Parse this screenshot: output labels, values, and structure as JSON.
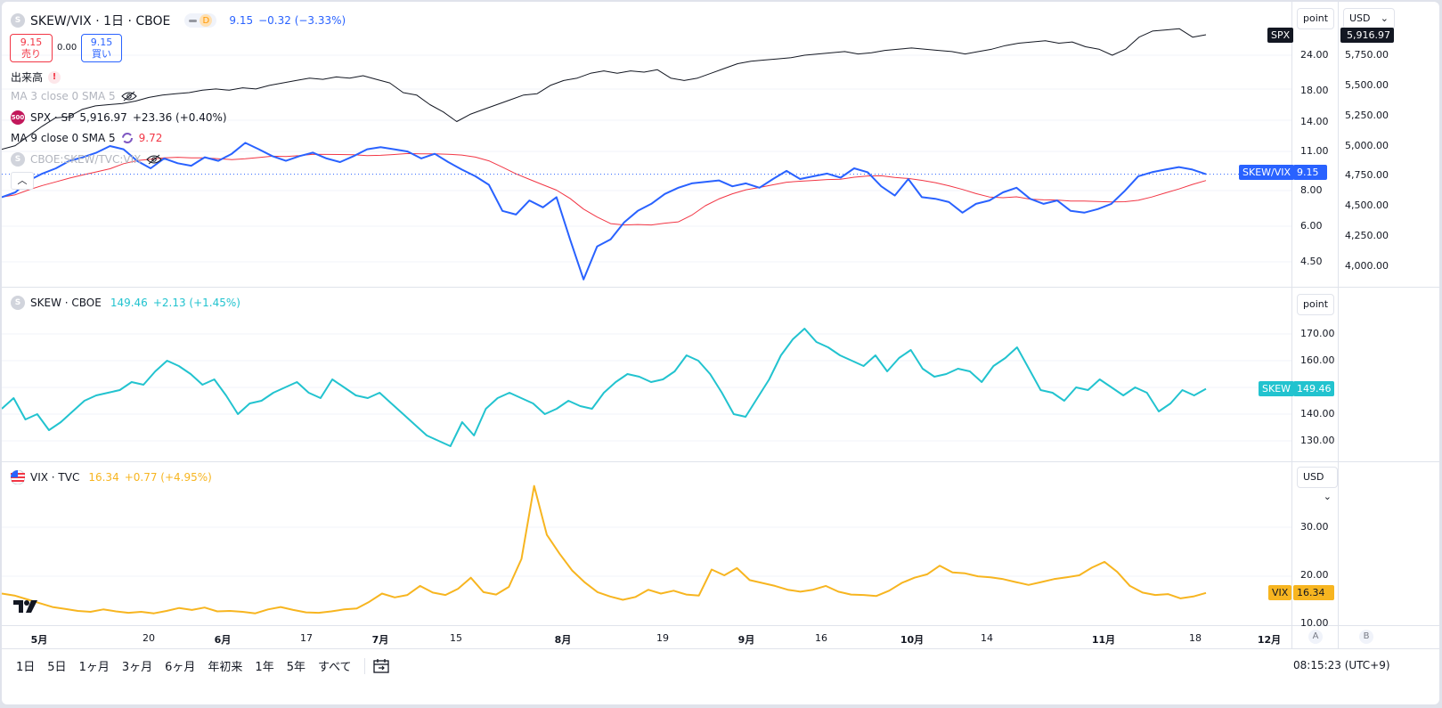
{
  "header": {
    "symbol_title": "SKEW/VIX · 1日 · CBOE",
    "interval_badge": "D",
    "price": "9.15",
    "change": "−0.32 (−3.33%)",
    "sell_price": "9.15",
    "sell_label": "売り",
    "spread": "0.00",
    "buy_price": "9.15",
    "buy_label": "買い"
  },
  "indicators": {
    "volume": "出来高",
    "ma3": "MA 3 close 0 SMA 5",
    "spx_line": "SPX · SP",
    "spx_price": "5,916.97",
    "spx_change": "+23.36 (+0.40%)",
    "ma9": "MA 9 close 0 SMA 5",
    "ma9_value": "9.72",
    "cboe_ratio": "CBOE:SKEW/TVC:VIX"
  },
  "pane2": {
    "title": "SKEW · CBOE",
    "price": "149.46",
    "change": "+2.13 (+1.45%)"
  },
  "pane3": {
    "title": "VIX · TVC",
    "price": "16.34",
    "change": "+0.77 (+4.95%)"
  },
  "scale_buttons": {
    "p1_mode": "point",
    "p1_currency": "USD",
    "p2_mode": "point",
    "p3_currency": "USD"
  },
  "price_tags": {
    "spx_label": "SPX",
    "spx_value": "5,916.97",
    "ratio_label": "SKEW/VIX",
    "ratio_value": "9.15",
    "skew_label": "SKEW",
    "skew_value": "149.46",
    "vix_label": "VIX",
    "vix_value": "16.34"
  },
  "axis_p1_left": [
    "24.00",
    "18.00",
    "14.00",
    "11.00",
    "8.00",
    "6.00",
    "4.50"
  ],
  "axis_p1_right": [
    "5,750.00",
    "5,500.00",
    "5,250.00",
    "5,000.00",
    "4,750.00",
    "4,500.00",
    "4,250.00",
    "4,000.00"
  ],
  "axis_p2": [
    "170.00",
    "160.00",
    "150.00",
    "140.00",
    "130.00"
  ],
  "axis_p3": [
    "30.00",
    "20.00",
    "10.00"
  ],
  "x_axis": [
    "5月",
    "20",
    "6月",
    "17",
    "7月",
    "15",
    "8月",
    "19",
    "9月",
    "16",
    "10月",
    "14",
    "11月",
    "18",
    "12月"
  ],
  "axis_buttons": [
    "A",
    "B"
  ],
  "bottom": {
    "ranges": [
      "1日",
      "5日",
      "1ヶ月",
      "3ヶ月",
      "6ヶ月",
      "年初来",
      "1年",
      "5年",
      "すべて"
    ],
    "clock": "08:15:23 (UTC+9)"
  },
  "colors": {
    "ratio": "#2962ff",
    "ma": "#f23645",
    "spx": "#131722",
    "skew": "#22c3cf",
    "vix": "#f7b520",
    "accent_orange": "#ff9800"
  },
  "chart_data": [
    {
      "type": "line",
      "title": "SKEW/VIX",
      "series": [
        {
          "name": "SPX",
          "values": [
            4970,
            5000,
            5080,
            5160,
            5230,
            5240,
            5300,
            5330,
            5340,
            5350,
            5370,
            5400,
            5420,
            5430,
            5440,
            5460,
            5470,
            5460,
            5480,
            5470,
            5500,
            5520,
            5540,
            5560,
            5550,
            5570,
            5560,
            5580,
            5550,
            5520,
            5440,
            5420,
            5340,
            5280,
            5200,
            5260,
            5300,
            5340,
            5380,
            5420,
            5430,
            5500,
            5540,
            5560,
            5600,
            5620,
            5600,
            5620,
            5610,
            5630,
            5560,
            5540,
            5560,
            5600,
            5640,
            5680,
            5700,
            5710,
            5720,
            5730,
            5750,
            5760,
            5770,
            5780,
            5760,
            5770,
            5790,
            5800,
            5810,
            5800,
            5790,
            5780,
            5760,
            5780,
            5800,
            5830,
            5850,
            5860,
            5870,
            5850,
            5860,
            5820,
            5800,
            5750,
            5800,
            5900,
            5950,
            5960,
            5970,
            5900,
            5920
          ]
        },
        {
          "name": "SKEW/VIX",
          "values": [
            7.6,
            7.9,
            8.7,
            9.2,
            9.6,
            10.2,
            10.5,
            10.9,
            11.5,
            11.2,
            10.2,
            9.6,
            10.4,
            10.0,
            9.8,
            10.5,
            10.2,
            10.8,
            11.8,
            11.2,
            10.6,
            10.2,
            10.6,
            10.9,
            10.4,
            10.1,
            10.6,
            11.2,
            11.4,
            11.2,
            11.0,
            10.4,
            10.8,
            10.1,
            9.5,
            9.0,
            8.4,
            6.8,
            6.6,
            7.4,
            7.0,
            7.6,
            5.4,
            3.9,
            5.1,
            5.4,
            6.2,
            6.8,
            7.2,
            7.8,
            8.2,
            8.5,
            8.6,
            8.7,
            8.3,
            8.5,
            8.2,
            8.8,
            9.4,
            8.8,
            9.0,
            9.2,
            8.9,
            9.6,
            9.3,
            8.3,
            7.7,
            8.8,
            7.6,
            7.5,
            7.3,
            6.7,
            7.2,
            7.4,
            7.9,
            8.2,
            7.5,
            7.2,
            7.4,
            6.8,
            6.7,
            6.9,
            7.2,
            8.0,
            9.0,
            9.3,
            9.5,
            9.7,
            9.5,
            9.15
          ]
        }
      ]
    },
    {
      "type": "line",
      "title": "SKEW",
      "series": [
        {
          "name": "SKEW",
          "values": [
            142,
            146,
            138,
            140,
            134,
            137,
            141,
            145,
            147,
            148,
            149,
            152,
            151,
            156,
            160,
            158,
            155,
            151,
            153,
            147,
            140,
            144,
            145,
            148,
            150,
            152,
            148,
            146,
            153,
            150,
            147,
            146,
            148,
            144,
            140,
            136,
            132,
            130,
            128,
            137,
            132,
            142,
            146,
            148,
            146,
            144,
            140,
            142,
            145,
            143,
            142,
            148,
            152,
            155,
            154,
            152,
            153,
            156,
            162,
            160,
            155,
            148,
            140,
            139,
            146,
            153,
            162,
            168,
            172,
            167,
            165,
            162,
            160,
            158,
            162,
            156,
            161,
            164,
            157,
            154,
            155,
            157,
            156,
            152,
            158,
            161,
            165,
            157,
            149,
            148,
            145,
            150,
            149,
            153,
            150,
            147,
            150,
            148,
            141,
            144,
            149,
            147,
            149.46
          ]
        }
      ]
    },
    {
      "type": "line",
      "title": "VIX",
      "series": [
        {
          "name": "VIX",
          "values": [
            16.2,
            15.8,
            15.0,
            14.2,
            13.4,
            13.0,
            12.6,
            12.4,
            12.9,
            12.5,
            12.2,
            12.4,
            12.1,
            12.6,
            13.2,
            12.8,
            13.3,
            12.5,
            12.6,
            12.4,
            12.1,
            12.9,
            13.4,
            12.8,
            12.3,
            12.2,
            12.5,
            12.9,
            13.1,
            14.5,
            16.2,
            15.4,
            15.9,
            17.8,
            16.4,
            15.9,
            17.2,
            19.5,
            16.5,
            16.0,
            17.6,
            23.4,
            38.6,
            28.4,
            24.5,
            21.0,
            18.5,
            16.5,
            15.6,
            14.9,
            15.5,
            17.0,
            16.2,
            16.8,
            16.0,
            15.8,
            21.2,
            20.0,
            21.5,
            19.0,
            18.4,
            17.8,
            17.0,
            16.6,
            17.0,
            17.8,
            16.6,
            16.0,
            15.9,
            15.7,
            16.8,
            18.4,
            19.5,
            20.2,
            22.0,
            20.6,
            20.4,
            19.8,
            19.6,
            19.2,
            18.6,
            18.0,
            18.6,
            19.2,
            19.6,
            20.0,
            21.6,
            22.8,
            20.7,
            17.8,
            16.4,
            15.9,
            16.1,
            15.2,
            15.6,
            16.34
          ]
        }
      ]
    }
  ]
}
